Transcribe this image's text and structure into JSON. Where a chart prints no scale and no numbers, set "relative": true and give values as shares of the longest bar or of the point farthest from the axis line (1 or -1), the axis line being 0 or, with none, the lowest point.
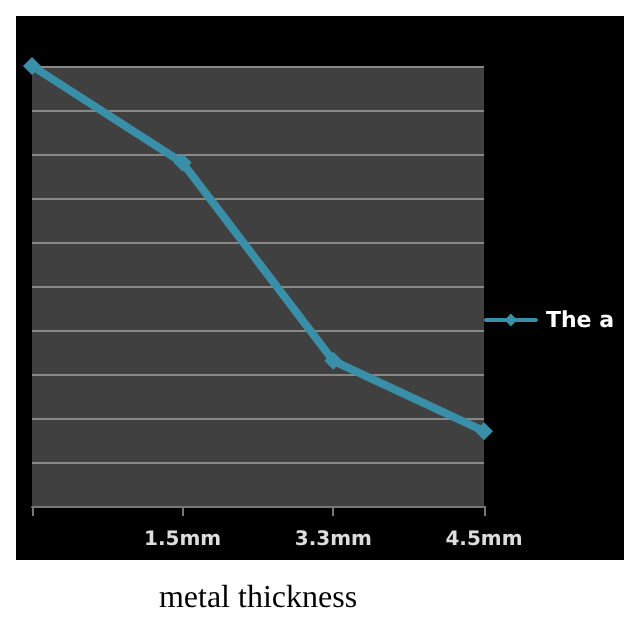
{
  "chart_data": {
    "type": "line",
    "xlabel": "metal thickness",
    "categories": [
      null,
      "1.5mm",
      "3.3mm",
      "4.5mm"
    ],
    "series": [
      {
        "name": "The a",
        "color": "#3a8fa8",
        "values": [
          1,
          0.78,
          0.33,
          0.17
        ]
      }
    ],
    "relative": true,
    "grid": "y",
    "legend": "right",
    "marker": "diamond",
    "line_style": "solid"
  }
}
